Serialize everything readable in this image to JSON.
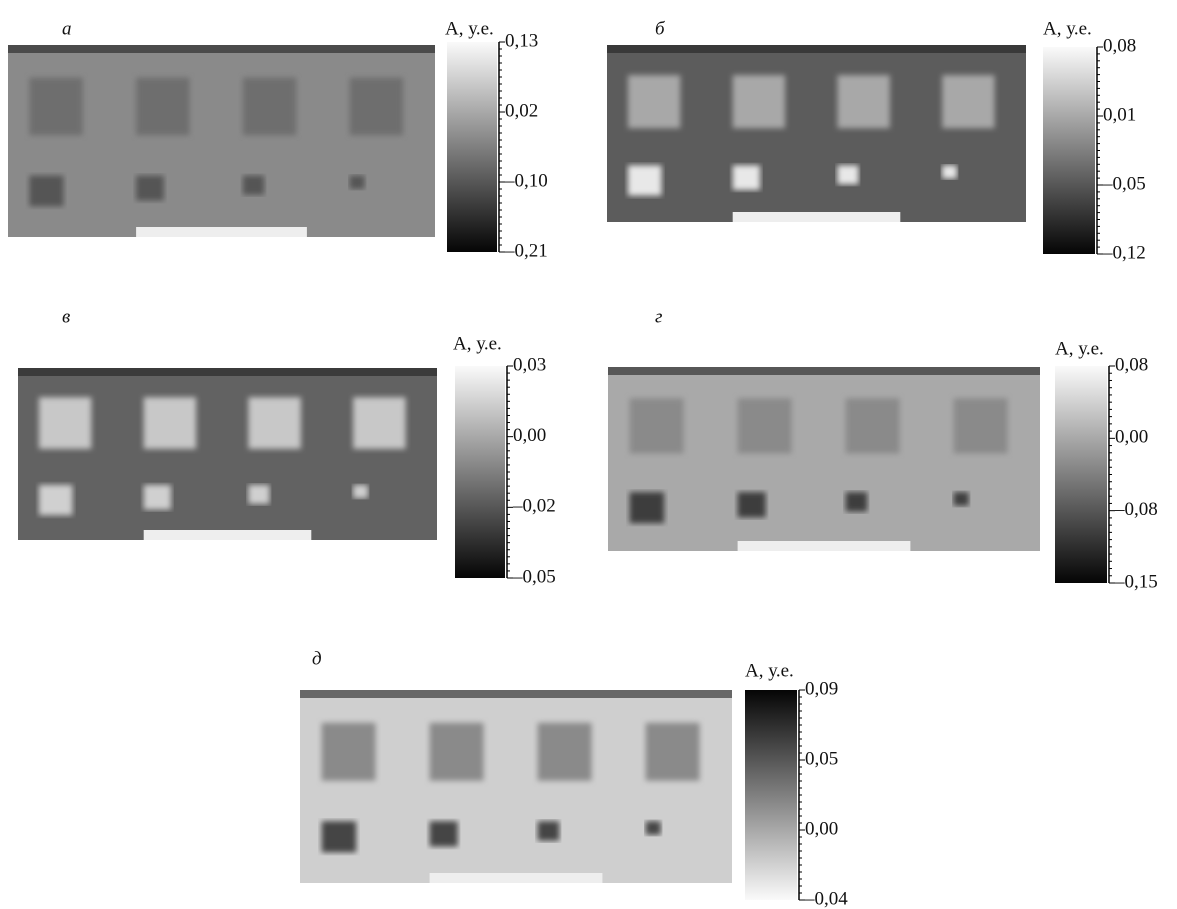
{
  "panels": [
    {
      "label": "а",
      "scale_title": "A, у.е.",
      "ticks": [
        "0,13",
        "0,02",
        "–0,10",
        "–0,21"
      ]
    },
    {
      "label": "б",
      "scale_title": "A, у.е.",
      "ticks": [
        "0,08",
        "0,01",
        "–0,05",
        "–0,12"
      ]
    },
    {
      "label": "в",
      "scale_title": "A, у.е.",
      "ticks": [
        "0,03",
        "0,00",
        "–0,02",
        "–0,05"
      ]
    },
    {
      "label": "г",
      "scale_title": "A, у.е.",
      "ticks": [
        "0,08",
        "0,00",
        "–0,08",
        "–0,15"
      ]
    },
    {
      "label": "д",
      "scale_title": "A, у.е.",
      "ticks": [
        "0,09",
        "0,05",
        "0,00",
        "–0,04"
      ]
    }
  ]
}
